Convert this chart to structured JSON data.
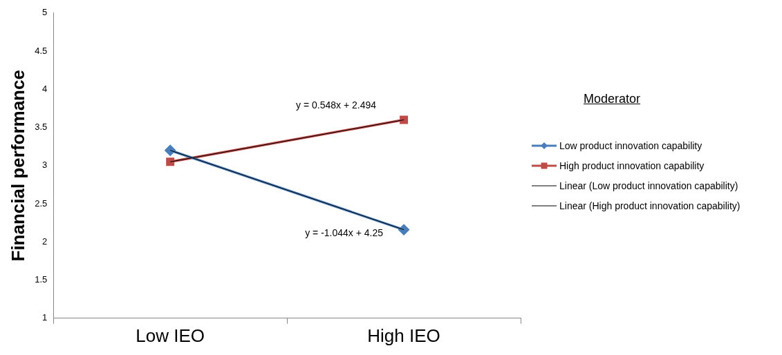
{
  "chart_data": {
    "type": "line",
    "ylabel": "Financial performance",
    "legend_title": "Moderator",
    "categories": [
      "Low IEO",
      "High IEO"
    ],
    "series": [
      {
        "name": "Low product innovation capability",
        "color": "#4a7ebb",
        "values": [
          3.2,
          2.16
        ],
        "marker": "diamond"
      },
      {
        "name": "High product innovation capability",
        "color": "#be4b48",
        "values": [
          3.05,
          3.6
        ],
        "marker": "square"
      },
      {
        "name": "Linear (Low product innovation capability)",
        "type": "line",
        "color": "#000000",
        "values": [
          3.2,
          2.16
        ],
        "marker": "none"
      },
      {
        "name": "Linear (High product innovation capability)",
        "type": "line",
        "color": "#000000",
        "values": [
          3.05,
          3.6
        ],
        "marker": "none"
      }
    ],
    "ylim": [
      1,
      5
    ],
    "yticks": [
      1,
      1.5,
      2,
      2.5,
      3,
      3.5,
      4,
      4.5,
      5
    ],
    "grid": false,
    "legend": "right",
    "annotations": [
      {
        "text": "y = 0.548x + 2.494",
        "x": "High IEO",
        "y": 3.6
      },
      {
        "text": "y = -1.044x + 4.25",
        "x": "High IEO",
        "y": 2.16
      }
    ]
  }
}
